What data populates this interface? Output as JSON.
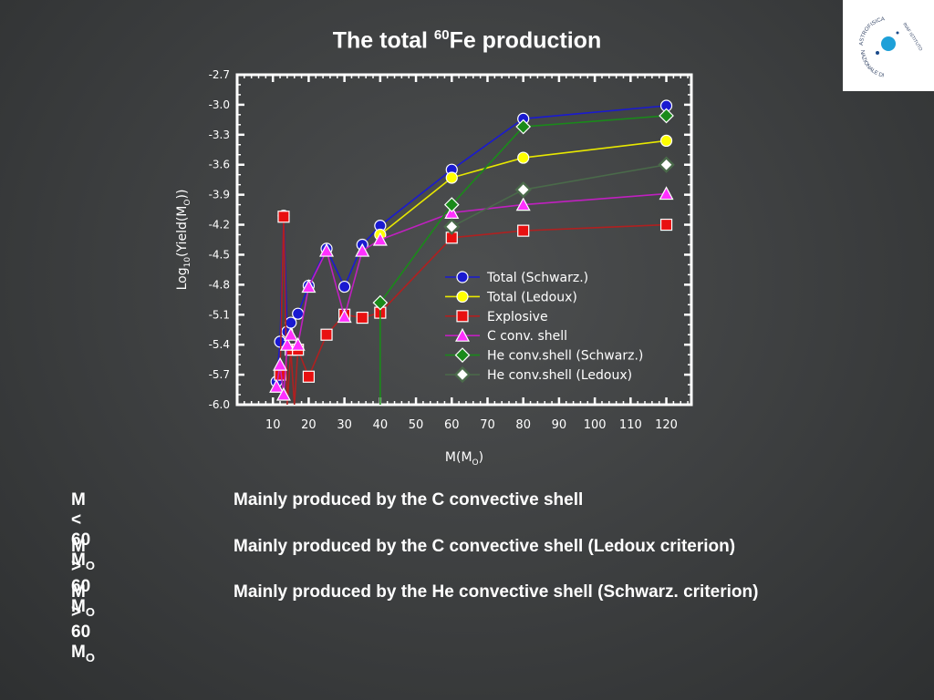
{
  "slide": {
    "title_pre": "The total ",
    "title_sup": "60",
    "title_post": "Fe production",
    "notes": [
      {
        "mass_prefix": "M < 60 M",
        "mass_sub": "O",
        "text": "Mainly produced by the C convective shell"
      },
      {
        "mass_prefix": "M > 60 M",
        "mass_sub": "O",
        "text": "Mainly produced by the C convective shell  (Ledoux criterion)"
      },
      {
        "mass_prefix": "M > 60 M",
        "mass_sub": "O",
        "text": "Mainly produced by the He convective shell  (Schwarz. criterion)"
      }
    ]
  },
  "logo": {
    "text_top": "ASTROFISICA",
    "text_right": "INAF ISTITUTO",
    "text_bottom": "NAZIONALE DI",
    "accent": "#1ea0d8"
  },
  "chart_data": {
    "type": "line",
    "xlabel": "M(MO)",
    "ylabel": "Log10(Yield(MO))",
    "xticks": [
      10,
      20,
      30,
      40,
      50,
      60,
      70,
      80,
      90,
      100,
      110,
      120
    ],
    "yticks": [
      -2.7,
      -3.0,
      -3.3,
      -3.6,
      -3.9,
      -4.2,
      -4.5,
      -4.8,
      -5.1,
      -5.4,
      -5.7,
      -6.0
    ],
    "xlim": [
      0,
      127
    ],
    "ylim": [
      -6.0,
      -2.7
    ],
    "legend_position": "lower-right",
    "series": [
      {
        "name": "Total (Schwarz.)",
        "color": "#1a1ad0",
        "marker": "circle",
        "fill": "#1a1ad0",
        "points": [
          [
            11,
            -5.77
          ],
          [
            12,
            -5.37
          ],
          [
            13,
            -4.11
          ],
          [
            14,
            -5.27
          ],
          [
            15,
            -5.18
          ],
          [
            17,
            -5.09
          ],
          [
            20,
            -4.81
          ],
          [
            25,
            -4.44
          ],
          [
            30,
            -4.82
          ],
          [
            35,
            -4.4
          ],
          [
            40,
            -4.21
          ],
          [
            60,
            -3.65
          ],
          [
            80,
            -3.14
          ],
          [
            120,
            -3.01
          ]
        ]
      },
      {
        "name": "Total (Ledoux)",
        "color": "#e8e800",
        "marker": "circle",
        "fill": "#ffff00",
        "points": [
          [
            40,
            -4.3
          ],
          [
            60,
            -3.73
          ],
          [
            80,
            -3.53
          ],
          [
            120,
            -3.36
          ]
        ]
      },
      {
        "name": "Explosive",
        "color": "#b02020",
        "marker": "square",
        "fill": "#e81010",
        "points": [
          [
            12,
            -5.7
          ],
          [
            13,
            -4.12
          ],
          [
            14,
            -6.0
          ],
          [
            15,
            -5.45
          ],
          [
            16,
            -6.0
          ],
          [
            17,
            -5.45
          ],
          [
            20,
            -5.72
          ],
          [
            25,
            -5.3
          ],
          [
            30,
            -5.1
          ],
          [
            35,
            -5.13
          ],
          [
            40,
            -5.08
          ],
          [
            60,
            -4.33
          ],
          [
            80,
            -4.26
          ],
          [
            120,
            -4.2
          ]
        ]
      },
      {
        "name": "C conv. shell",
        "color": "#c020c0",
        "marker": "triangle",
        "fill": "#ff30ff",
        "points": [
          [
            11,
            -5.82
          ],
          [
            12,
            -5.6
          ],
          [
            13,
            -5.9
          ],
          [
            14,
            -5.4
          ],
          [
            15,
            -5.3
          ],
          [
            17,
            -5.4
          ],
          [
            20,
            -4.82
          ],
          [
            25,
            -4.46
          ],
          [
            30,
            -5.12
          ],
          [
            35,
            -4.46
          ],
          [
            40,
            -4.35
          ],
          [
            60,
            -4.08
          ],
          [
            80,
            -4.0
          ],
          [
            120,
            -3.89
          ]
        ]
      },
      {
        "name": "He conv.shell (Schwarz.)",
        "color": "#1a8a1a",
        "marker": "diamond",
        "fill": "#1a8a1a",
        "points": [
          [
            40,
            -6.0
          ],
          [
            40,
            -4.98
          ],
          [
            60,
            -4.0
          ],
          [
            80,
            -3.22
          ],
          [
            120,
            -3.11
          ]
        ]
      },
      {
        "name": "He conv.shell (Ledoux)",
        "color": "#4a6a4a",
        "marker": "diamond-open",
        "fill": "#ffffff",
        "points": [
          [
            60,
            -4.22
          ],
          [
            80,
            -3.85
          ],
          [
            120,
            -3.6
          ]
        ]
      }
    ]
  }
}
